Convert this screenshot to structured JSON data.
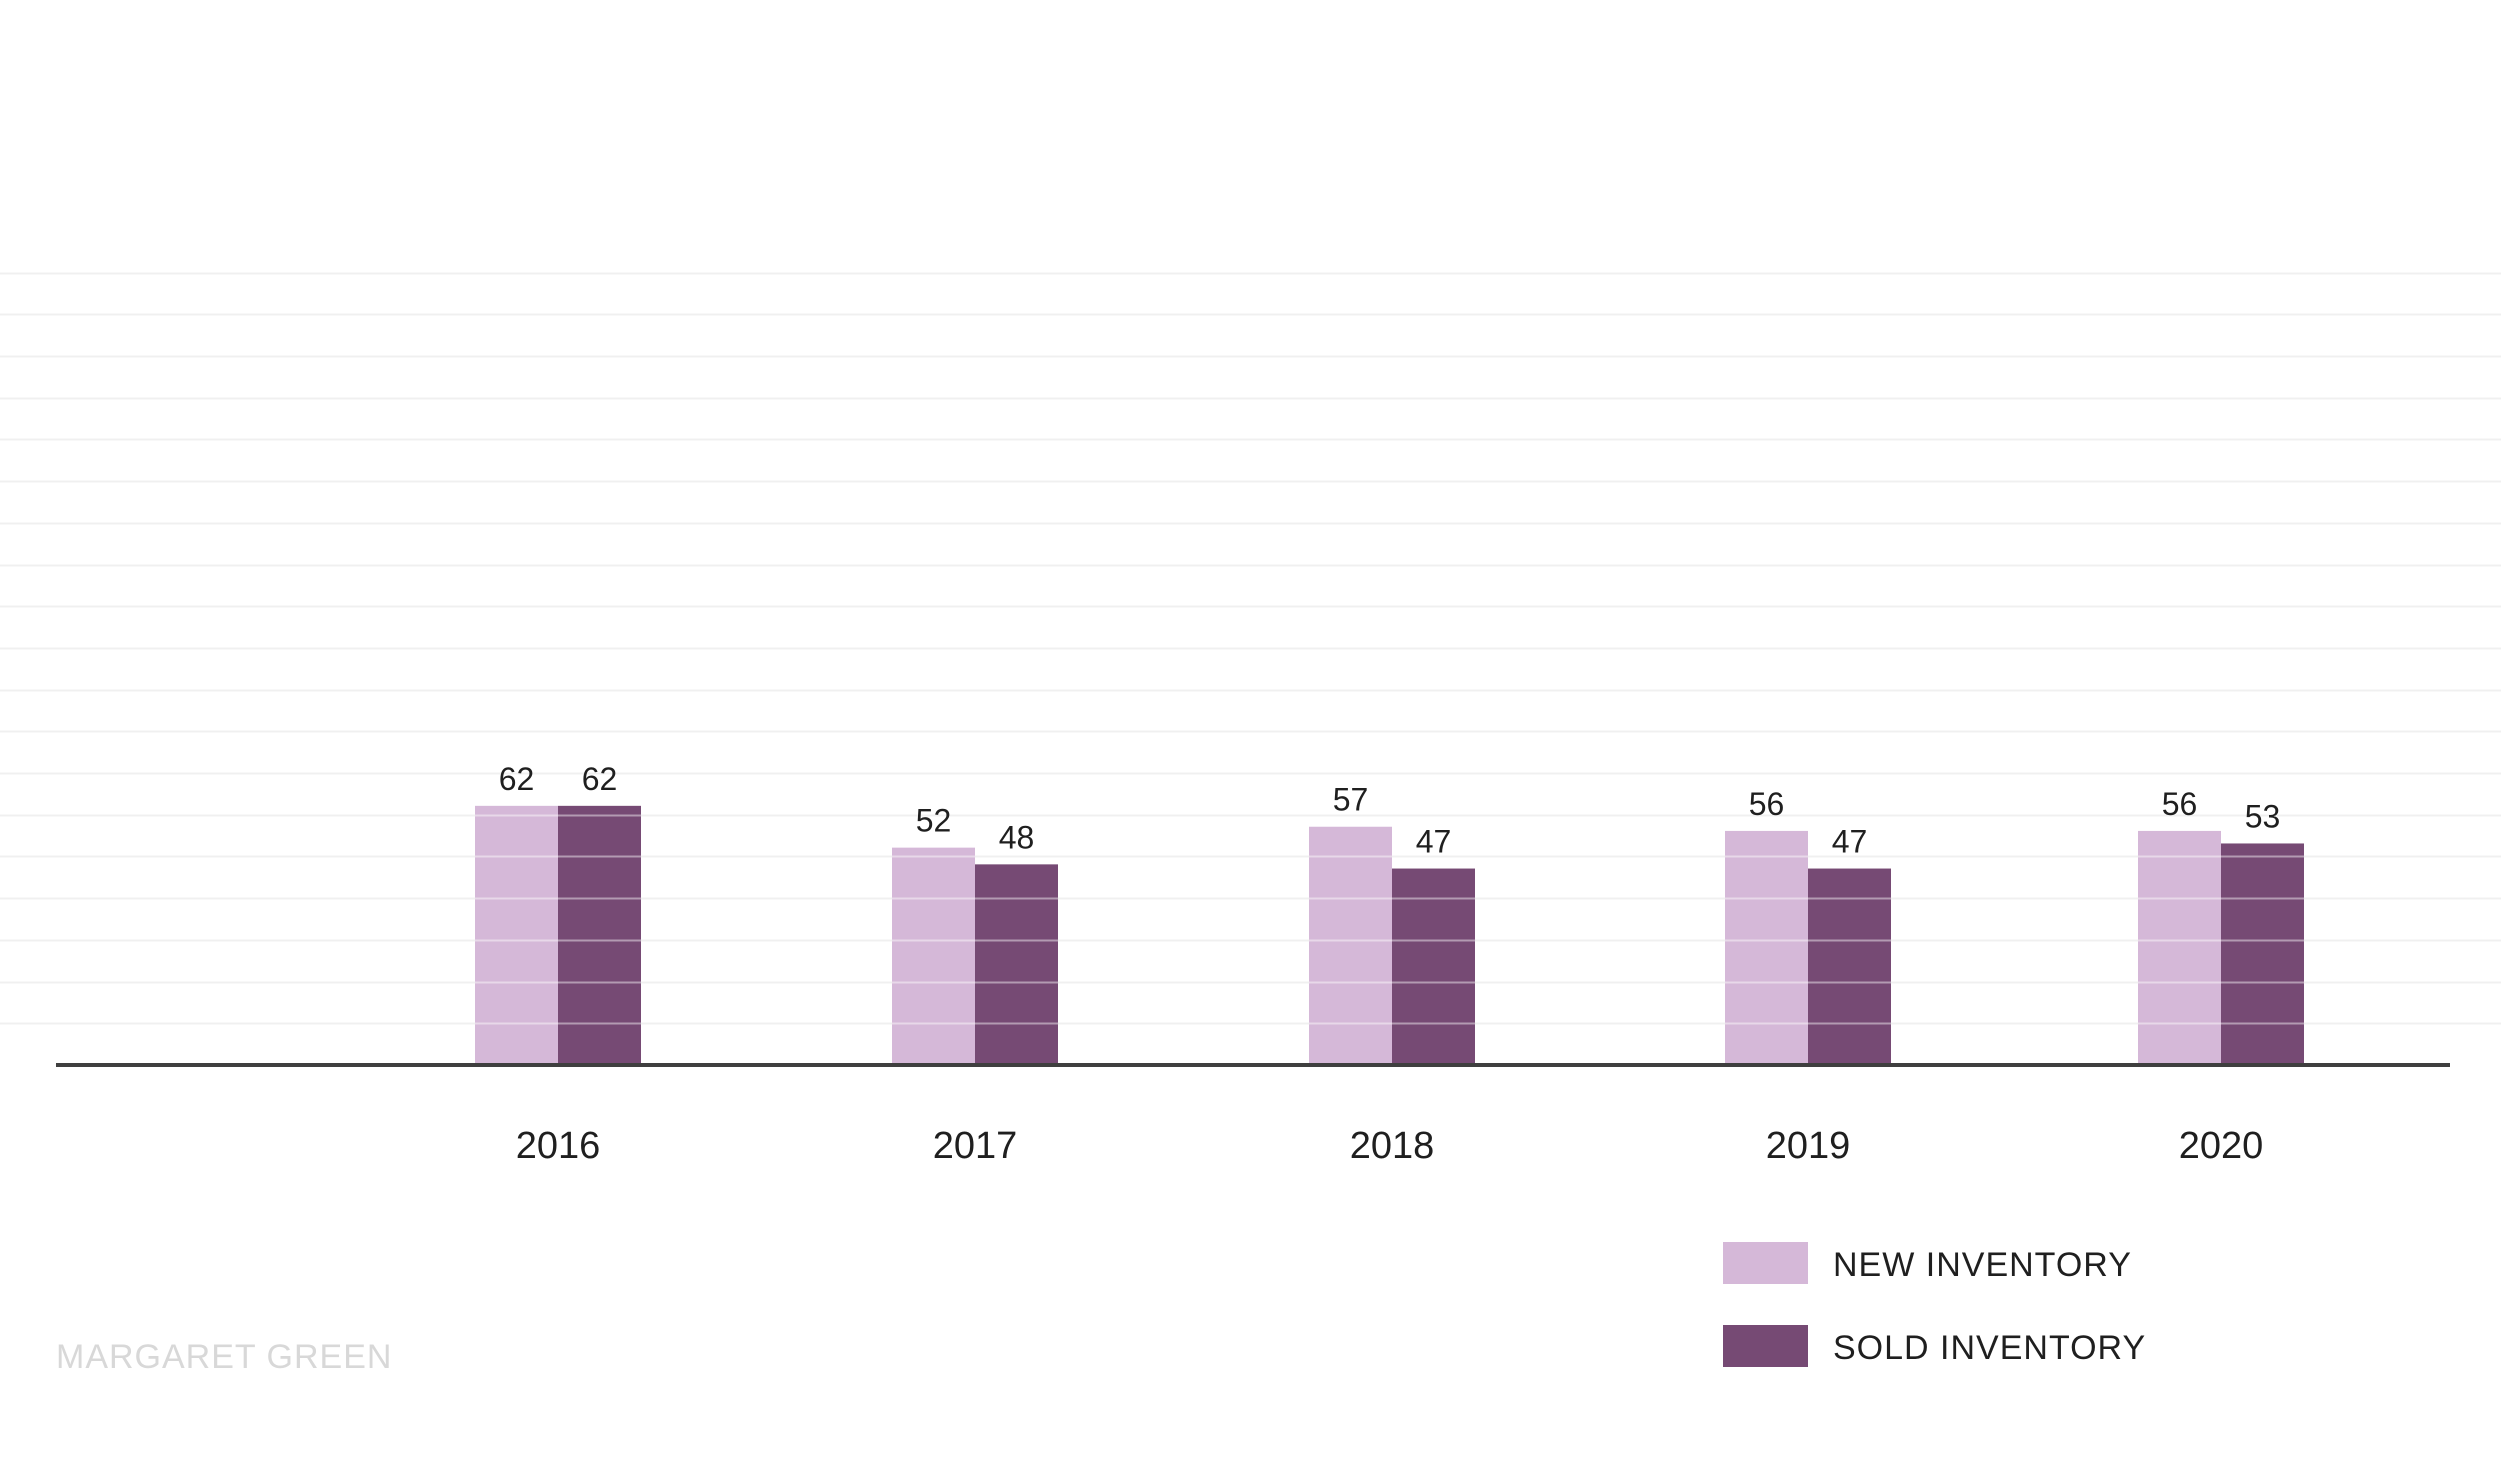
{
  "chart_data": {
    "type": "bar",
    "categories": [
      "2016",
      "2017",
      "2018",
      "2019",
      "2020"
    ],
    "series": [
      {
        "name": "NEW INVENTORY",
        "values": [
          62,
          52,
          57,
          56,
          56
        ],
        "color": "#d5b8d8"
      },
      {
        "name": "SOLD INVENTORY",
        "values": [
          62,
          48,
          47,
          47,
          53
        ],
        "color": "#764a74"
      }
    ],
    "title": "",
    "xlabel": "",
    "ylabel": "",
    "ylim": [
      0,
      200
    ],
    "grid": true,
    "legend_position": "bottom-right",
    "data_labels": true
  },
  "watermark": {
    "text": "MARGARET GREEN"
  },
  "colors": {
    "axis": "#3f3f3f",
    "grid": "#f0f0f0",
    "text": "#1f1f1f",
    "watermark": "#d8d8d8"
  }
}
